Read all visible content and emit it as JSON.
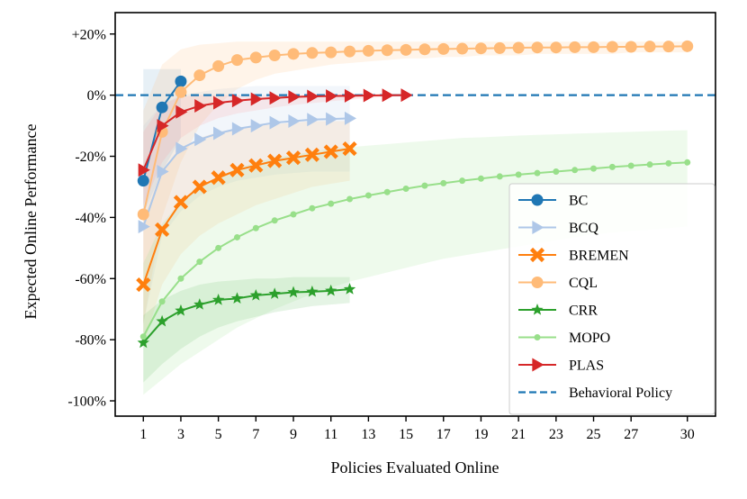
{
  "chart_data": {
    "type": "line",
    "title": "",
    "xlabel": "Policies Evaluated Online",
    "ylabel": "Expected Online Performance",
    "xlim": [
      -0.5,
      31.5
    ],
    "ylim": [
      -105,
      27
    ],
    "x_ticks": [
      1,
      3,
      5,
      7,
      9,
      11,
      13,
      15,
      17,
      19,
      21,
      23,
      25,
      27,
      30
    ],
    "y_ticks": [
      {
        "value": 20,
        "label": "+20%"
      },
      {
        "value": 0,
        "label": "0%"
      },
      {
        "value": -20,
        "label": "-20%"
      },
      {
        "value": -40,
        "label": "-40%"
      },
      {
        "value": -60,
        "label": "-60%"
      },
      {
        "value": -80,
        "label": "-80%"
      },
      {
        "value": -100,
        "label": "-100%"
      }
    ],
    "legend_position": "lower-right",
    "series": [
      {
        "name": "BC",
        "color": "#1f77b4",
        "marker": "circle",
        "x": [
          1,
          2,
          3
        ],
        "values": [
          -28,
          -4,
          4.5
        ],
        "band_upper": [
          8.5,
          8.5,
          8.5
        ],
        "band_lower": [
          -39,
          -25,
          -14
        ],
        "band_color": "#6a9fc9"
      },
      {
        "name": "BCQ",
        "color": "#aec7e8",
        "marker": "triangle-right",
        "x": [
          1,
          2,
          3,
          4,
          5,
          6,
          7,
          8,
          9,
          10,
          11,
          12
        ],
        "values": [
          -43,
          -25,
          -17.5,
          -14.5,
          -12.5,
          -11,
          -10,
          -9,
          -8.5,
          -8,
          -7.8,
          -7.6
        ],
        "band_upper": [
          -10,
          -3,
          0,
          1,
          2,
          2.5,
          3,
          3,
          3,
          3,
          3,
          3
        ],
        "band_lower": [
          -75,
          -46,
          -38,
          -33,
          -30,
          -28,
          -27,
          -26,
          -25.5,
          -25,
          -25,
          -25
        ],
        "band_color": "#aec7e8"
      },
      {
        "name": "BREMEN",
        "color": "#ff7f0e",
        "marker": "x",
        "x": [
          1,
          2,
          3,
          4,
          5,
          6,
          7,
          8,
          9,
          10,
          11,
          12
        ],
        "values": [
          -62,
          -44,
          -35,
          -30,
          -27,
          -24.5,
          -23,
          -21.5,
          -20.5,
          -19.5,
          -18.5,
          -17.5
        ],
        "band_upper": [
          -40,
          -25,
          -18,
          -14,
          -12,
          -11,
          -10,
          -9.5,
          -9,
          -8.5,
          -8.5,
          -8.5
        ],
        "band_lower": [
          -82,
          -62,
          -52,
          -46,
          -42,
          -39,
          -36,
          -34,
          -32,
          -30,
          -29,
          -28
        ],
        "band_color": "#ffbb78"
      },
      {
        "name": "CQL",
        "color": "#ffbb78",
        "marker": "circle",
        "x": [
          1,
          2,
          3,
          4,
          5,
          6,
          7,
          8,
          9,
          10,
          11,
          12,
          13,
          14,
          15,
          16,
          17,
          18,
          19,
          20,
          21,
          22,
          23,
          24,
          25,
          26,
          27,
          28,
          29,
          30
        ],
        "values": [
          -39,
          -12,
          1,
          6.5,
          9.5,
          11.5,
          12.3,
          13,
          13.5,
          13.8,
          14,
          14.3,
          14.5,
          14.7,
          14.8,
          15,
          15.1,
          15.2,
          15.3,
          15.4,
          15.5,
          15.6,
          15.6,
          15.7,
          15.7,
          15.8,
          15.8,
          15.9,
          15.9,
          16
        ],
        "band_upper": [
          -5,
          10,
          15,
          16.5,
          17,
          17.5,
          17.5,
          17.5,
          17.5,
          17.5,
          17.5,
          17.5,
          17.5,
          17.5,
          17.5,
          17.5,
          17.5,
          17.5,
          17.5,
          17.5,
          17.5,
          17.5,
          17.5,
          17.5,
          17.5,
          17.5,
          17.5,
          17.5,
          17.5,
          17.5
        ],
        "band_lower": [
          -75,
          -40,
          -22,
          -10,
          -3,
          2,
          5,
          7,
          8,
          9,
          10,
          10.5,
          11,
          11.5,
          12,
          12,
          12.5,
          12.5,
          13,
          13,
          13,
          13.5,
          13.5,
          13.5,
          13.5,
          13.5,
          14,
          14,
          14,
          14
        ],
        "band_color": "#ffbb78"
      },
      {
        "name": "CRR",
        "color": "#2ca02c",
        "marker": "star",
        "x": [
          1,
          2,
          3,
          4,
          5,
          6,
          7,
          8,
          9,
          10,
          11,
          12
        ],
        "values": [
          -81,
          -74,
          -70.5,
          -68.5,
          -67,
          -66.5,
          -65.5,
          -65,
          -64.5,
          -64.3,
          -64,
          -63.5
        ],
        "band_upper": [
          -72,
          -67,
          -64,
          -62,
          -61,
          -60.5,
          -60,
          -60,
          -59.5,
          -59.5,
          -59.5,
          -59.5
        ],
        "band_lower": [
          -94,
          -88,
          -83,
          -79,
          -76,
          -74,
          -72.5,
          -71,
          -70,
          -69,
          -68.5,
          -68
        ],
        "band_color": "#5cb85c"
      },
      {
        "name": "MOPO",
        "color": "#98df8a",
        "marker": "circle-small",
        "x": [
          1,
          2,
          3,
          4,
          5,
          6,
          7,
          8,
          9,
          10,
          11,
          12,
          13,
          14,
          15,
          16,
          17,
          18,
          19,
          20,
          21,
          22,
          23,
          24,
          25,
          26,
          27,
          28,
          29,
          30
        ],
        "values": [
          -79,
          -67.5,
          -60,
          -54.5,
          -50,
          -46.5,
          -43.5,
          -41,
          -39,
          -37,
          -35.5,
          -34,
          -32.8,
          -31.7,
          -30.6,
          -29.6,
          -28.8,
          -28,
          -27.3,
          -26.6,
          -26,
          -25.5,
          -25,
          -24.5,
          -24,
          -23.5,
          -23.1,
          -22.7,
          -22.3,
          -22
        ],
        "band_upper": [
          -55,
          -42,
          -35,
          -30,
          -26.5,
          -24,
          -22,
          -20.5,
          -19.5,
          -18.5,
          -17.5,
          -17,
          -16.5,
          -16,
          -15.5,
          -15,
          -14.5,
          -14,
          -13.8,
          -13.5,
          -13.2,
          -13,
          -12.8,
          -12.6,
          -12.4,
          -12.2,
          -12,
          -11.8,
          -11.6,
          -11.5
        ],
        "band_lower": [
          -98,
          -93,
          -88,
          -84,
          -80,
          -76,
          -73,
          -70,
          -67.5,
          -65,
          -63,
          -61,
          -59.5,
          -58,
          -56.5,
          -55,
          -53.5,
          -52.5,
          -51.5,
          -50.5,
          -49.5,
          -48.5,
          -47.5,
          -46.5,
          -45.5,
          -45,
          -44.5,
          -44,
          -43.5,
          -43
        ],
        "band_color": "#98df8a"
      },
      {
        "name": "PLAS",
        "color": "#d62728",
        "marker": "triangle-right",
        "x": [
          1,
          2,
          3,
          4,
          5,
          6,
          7,
          8,
          9,
          10,
          11,
          12,
          13,
          14,
          15
        ],
        "values": [
          -24.5,
          -10,
          -5.5,
          -3.5,
          -2.5,
          -1.8,
          -1.3,
          -0.9,
          -0.6,
          -0.4,
          -0.3,
          -0.2,
          -0.1,
          -0.05,
          0
        ],
        "band_upper": [
          -12,
          -3,
          -0.5,
          0,
          0,
          0,
          0,
          0,
          0,
          0,
          0,
          0,
          0,
          0,
          0
        ],
        "band_lower": [
          -36,
          -22,
          -14,
          -10,
          -7.5,
          -6,
          -5,
          -4,
          -3.2,
          -2.6,
          -2,
          -1.5,
          -1,
          -0.6,
          -0.3
        ],
        "band_color": "#ff9896"
      },
      {
        "name": "Behavioral Policy",
        "color": "#1f77b4",
        "marker": "none",
        "dashed": true,
        "hline": 0
      }
    ]
  }
}
